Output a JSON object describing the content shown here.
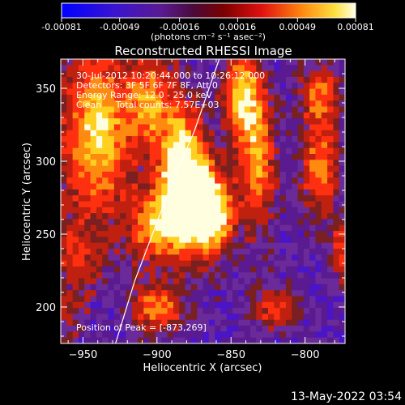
{
  "colorbar": {
    "tick_labels": [
      "-0.00081",
      "-0.00049",
      "-0.00016",
      "0.00016",
      "0.00049",
      "0.00081"
    ],
    "unit_label": "(photons cm⁻² s⁻¹ asec⁻²)"
  },
  "chart_data": {
    "type": "heatmap",
    "title": "Reconstructed RHESSI Image",
    "xlabel": "Heliocentric X (arcsec)",
    "ylabel": "Heliocentric Y (arcsec)",
    "xlim": [
      -965,
      -773
    ],
    "ylim": [
      175,
      370
    ],
    "x_ticks": [
      -950,
      -900,
      -850,
      -800
    ],
    "y_ticks": [
      200,
      250,
      300,
      350
    ],
    "colorscale": {
      "min": -0.00081,
      "max": 0.00081,
      "colors": [
        "#1010ff",
        "#4a14c8",
        "#5a1a90",
        "#6a2a9a",
        "#7a2020",
        "#c02010",
        "#ff3010",
        "#ff8a10",
        "#ffd020",
        "#ffffe0"
      ]
    },
    "peak": {
      "x": -873,
      "y": 269
    },
    "annotations": {
      "time_range": "30-Jul-2012 10:20:44.000 to 10:26:12.000",
      "detectors": "Detectors: 3F 5F 6F 7F 8F, Att 0",
      "energy_range": "Energy Range: 12.0 - 25.0 keV",
      "clean_counts": "Clean     Total counts: 7.57E+03",
      "peak_position": "Position of Peak = [-873,269]"
    },
    "limb_points": [
      [
        -858,
        370
      ],
      [
        -875,
        320
      ],
      [
        -890,
        285
      ],
      [
        -903,
        250
      ],
      [
        -915,
        218
      ],
      [
        -928,
        175
      ]
    ]
  },
  "footer": {
    "timestamp": "13-May-2022 03:54"
  }
}
